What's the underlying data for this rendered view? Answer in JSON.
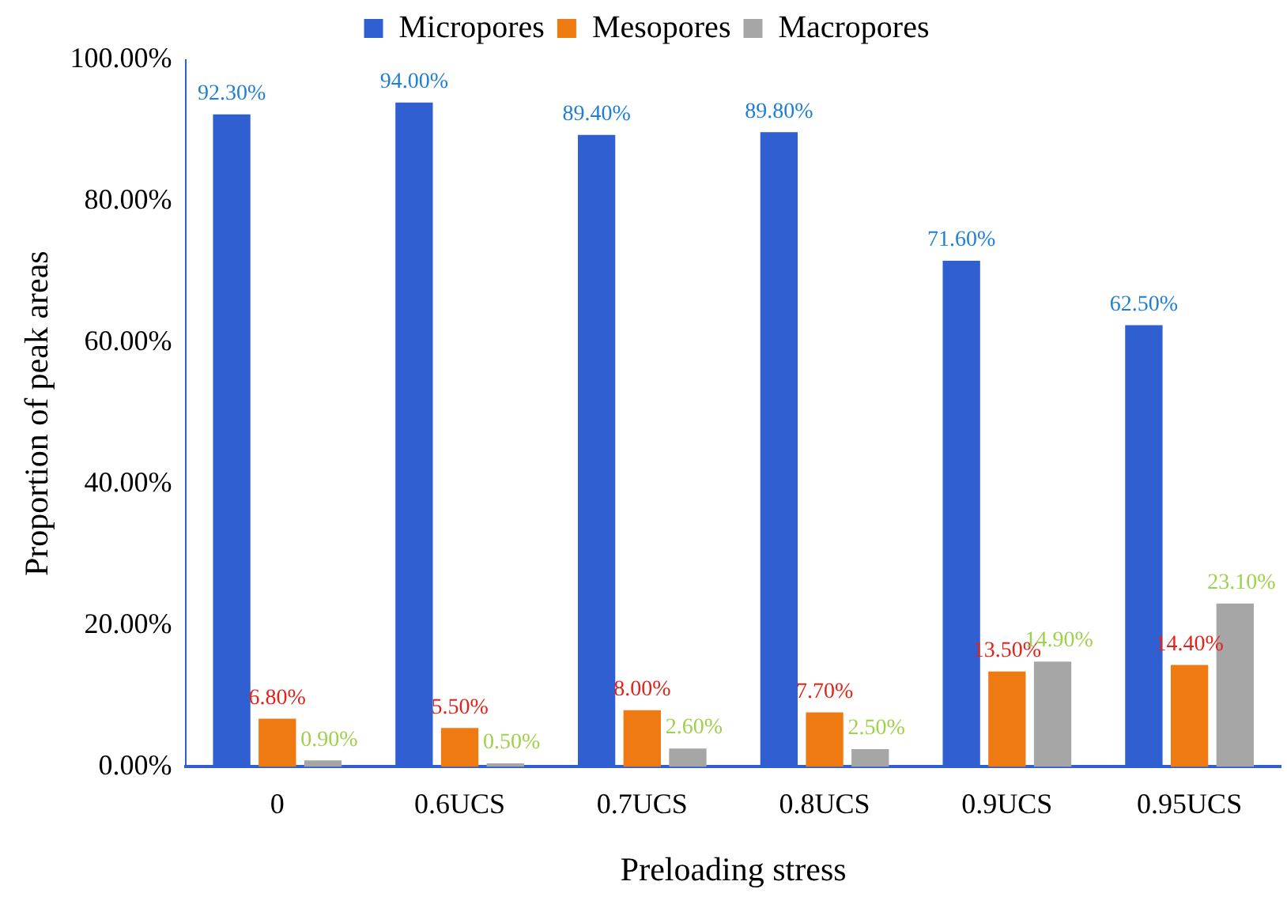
{
  "chart_data": {
    "type": "bar",
    "xlabel": "Preloading stress",
    "ylabel": "Proportion of peak areas",
    "categories": [
      "0",
      "0.6UCS",
      "0.7UCS",
      "0.8UCS",
      "0.9UCS",
      "0.95UCS"
    ],
    "series": [
      {
        "name": "Micropores",
        "color": "#2f5fd0",
        "values": [
          92.3,
          94.0,
          89.4,
          89.8,
          71.6,
          62.5
        ],
        "value_labels": [
          "92.30%",
          "94.00%",
          "89.40%",
          "89.80%",
          "71.60%",
          "62.50%"
        ]
      },
      {
        "name": "Mesopores",
        "color": "#f07a12",
        "values": [
          6.8,
          5.5,
          8.0,
          7.7,
          13.5,
          14.4
        ],
        "value_labels": [
          "6.80%",
          "5.50%",
          "8.00%",
          "7.70%",
          "13.50%",
          "14.40%"
        ]
      },
      {
        "name": "Macropores",
        "color": "#a6a6a6",
        "values": [
          0.9,
          0.5,
          2.6,
          2.5,
          14.9,
          23.1
        ],
        "value_labels": [
          "0.90%",
          "0.50%",
          "2.60%",
          "2.50%",
          "14.90%",
          "23.10%"
        ]
      }
    ],
    "ylim": [
      0,
      100
    ],
    "yticks": [
      {
        "value": 0,
        "label": "0.00%"
      },
      {
        "value": 20,
        "label": "20.00%"
      },
      {
        "value": 40,
        "label": "40.00%"
      },
      {
        "value": 60,
        "label": "60.00%"
      },
      {
        "value": 80,
        "label": "80.00%"
      },
      {
        "value": 100,
        "label": "100.00%"
      }
    ],
    "grid": false,
    "legend": "top"
  }
}
